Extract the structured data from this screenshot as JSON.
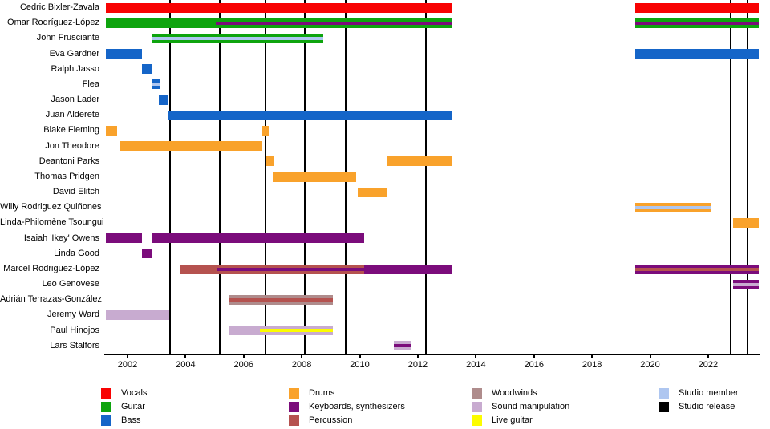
{
  "chart_data": {
    "type": "timeline",
    "x_axis": {
      "min": 2001.2,
      "max": 2023.77,
      "ticks": [
        2002,
        2004,
        2006,
        2008,
        2010,
        2012,
        2014,
        2016,
        2018,
        2020,
        2022
      ]
    },
    "colors": {
      "vocals": "#f80303",
      "guitar": "#0ea40e",
      "bass": "#1565c8",
      "drums": "#f9a22b",
      "keyboards": "#7b0c7b",
      "percussion": "#b5524f",
      "woodwinds": "#af8c8c",
      "sound_manipulation": "#c8abd0",
      "live_guitar": "#fcfc00",
      "studio_member": "#aec6f0",
      "studio_release": "#000000"
    },
    "rows": [
      {
        "name": "Cedric Bixler-Zavala",
        "segments": [
          {
            "start": 2001.25,
            "end": 2013.2,
            "role": "vocals"
          },
          {
            "start": 2019.5,
            "end": 2023.75,
            "role": "vocals"
          }
        ]
      },
      {
        "name": "Omar Rodríguez-López",
        "segments": [
          {
            "start": 2001.25,
            "end": 2013.2,
            "role": "guitar",
            "stripe": {
              "role": "keyboards",
              "start": 2005.05
            }
          },
          {
            "start": 2019.5,
            "end": 2023.75,
            "role": "guitar",
            "stripe": {
              "role": "keyboards"
            }
          }
        ]
      },
      {
        "name": "John Frusciante",
        "segments": [
          {
            "start": 2002.85,
            "end": 2008.75,
            "role": "guitar",
            "stripe": {
              "role": "studio_member"
            }
          }
        ]
      },
      {
        "name": "Eva Gardner",
        "segments": [
          {
            "start": 2001.25,
            "end": 2002.5,
            "role": "bass"
          },
          {
            "start": 2019.5,
            "end": 2023.75,
            "role": "bass"
          }
        ]
      },
      {
        "name": "Ralph Jasso",
        "segments": [
          {
            "start": 2002.5,
            "end": 2002.87,
            "role": "bass"
          }
        ]
      },
      {
        "name": "Flea",
        "segments": [
          {
            "start": 2002.85,
            "end": 2003.1,
            "role": "bass",
            "stripe": {
              "role": "studio_member"
            }
          }
        ]
      },
      {
        "name": "Jason Lader",
        "segments": [
          {
            "start": 2003.07,
            "end": 2003.4,
            "role": "bass"
          }
        ]
      },
      {
        "name": "Juan Alderete",
        "segments": [
          {
            "start": 2003.38,
            "end": 2013.2,
            "role": "bass"
          }
        ]
      },
      {
        "name": "Blake Fleming",
        "segments": [
          {
            "start": 2001.25,
            "end": 2001.65,
            "role": "drums"
          },
          {
            "start": 2006.63,
            "end": 2006.87,
            "role": "drums"
          }
        ]
      },
      {
        "name": "Jon Theodore",
        "segments": [
          {
            "start": 2001.75,
            "end": 2006.63,
            "role": "drums"
          }
        ]
      },
      {
        "name": "Deantoni Parks",
        "segments": [
          {
            "start": 2006.78,
            "end": 2007.03,
            "role": "drums"
          },
          {
            "start": 2010.93,
            "end": 2013.2,
            "role": "drums"
          }
        ]
      },
      {
        "name": "Thomas Pridgen",
        "segments": [
          {
            "start": 2007.0,
            "end": 2009.88,
            "role": "drums"
          }
        ]
      },
      {
        "name": "David Elitch",
        "segments": [
          {
            "start": 2009.93,
            "end": 2010.93,
            "role": "drums"
          }
        ]
      },
      {
        "name": "Willy Rodriguez Quiñones",
        "segments": [
          {
            "start": 2019.5,
            "end": 2022.1,
            "role": "drums",
            "stripe": {
              "role": "studio_member"
            }
          }
        ]
      },
      {
        "name": "Linda-Philomène Tsoungui",
        "segments": [
          {
            "start": 2022.85,
            "end": 2023.75,
            "role": "drums"
          }
        ]
      },
      {
        "name": "Isaiah 'Ikey' Owens",
        "segments": [
          {
            "start": 2001.25,
            "end": 2002.5,
            "role": "keyboards"
          },
          {
            "start": 2002.82,
            "end": 2010.15,
            "role": "keyboards"
          }
        ]
      },
      {
        "name": "Linda Good",
        "segments": [
          {
            "start": 2002.5,
            "end": 2002.87,
            "role": "keyboards"
          }
        ]
      },
      {
        "name": "Marcel Rodriguez-López",
        "segments": [
          {
            "start": 2003.8,
            "end": 2010.15,
            "role": "percussion",
            "stripe": {
              "role": "keyboards",
              "start": 2005.1
            }
          },
          {
            "start": 2010.15,
            "end": 2013.2,
            "role": "keyboards"
          },
          {
            "start": 2019.5,
            "end": 2023.75,
            "role": "keyboards",
            "stripe": {
              "role": "percussion"
            }
          }
        ]
      },
      {
        "name": "Leo Genovese",
        "segments": [
          {
            "start": 2022.85,
            "end": 2023.75,
            "role": "keyboards",
            "stripe": {
              "role": "sound_manipulation"
            }
          }
        ]
      },
      {
        "name": "Adrián Terrazas-González",
        "segments": [
          {
            "start": 2005.5,
            "end": 2009.07,
            "role": "woodwinds",
            "stripe": {
              "role": "percussion"
            }
          }
        ]
      },
      {
        "name": "Jeremy Ward",
        "segments": [
          {
            "start": 2001.25,
            "end": 2003.45,
            "role": "sound_manipulation"
          }
        ]
      },
      {
        "name": "Paul Hinojos",
        "segments": [
          {
            "start": 2005.5,
            "end": 2009.07,
            "role": "sound_manipulation",
            "stripe": {
              "role": "live_guitar",
              "start": 2006.55
            }
          }
        ]
      },
      {
        "name": "Lars Stalfors",
        "segments": [
          {
            "start": 2011.17,
            "end": 2011.75,
            "role": "sound_manipulation",
            "stripe": {
              "role": "keyboards"
            }
          }
        ]
      }
    ],
    "releases": [
      2003.47,
      2005.18,
      2006.75,
      2008.1,
      2009.51,
      2012.27,
      2022.77,
      2023.35
    ],
    "legend": {
      "columns": [
        [
          {
            "role": "vocals",
            "label": "Vocals"
          },
          {
            "role": "guitar",
            "label": "Guitar"
          },
          {
            "role": "bass",
            "label": "Bass"
          }
        ],
        [
          {
            "role": "drums",
            "label": "Drums"
          },
          {
            "role": "keyboards",
            "label": "Keyboards, synthesizers"
          },
          {
            "role": "percussion",
            "label": "Percussion"
          }
        ],
        [
          {
            "role": "woodwinds",
            "label": "Woodwinds"
          },
          {
            "role": "sound_manipulation",
            "label": "Sound manipulation"
          },
          {
            "role": "live_guitar",
            "label": "Live guitar"
          }
        ],
        [
          {
            "role": "studio_member",
            "label": "Studio member"
          },
          {
            "role": "studio_release",
            "label": "Studio release"
          }
        ]
      ]
    }
  }
}
